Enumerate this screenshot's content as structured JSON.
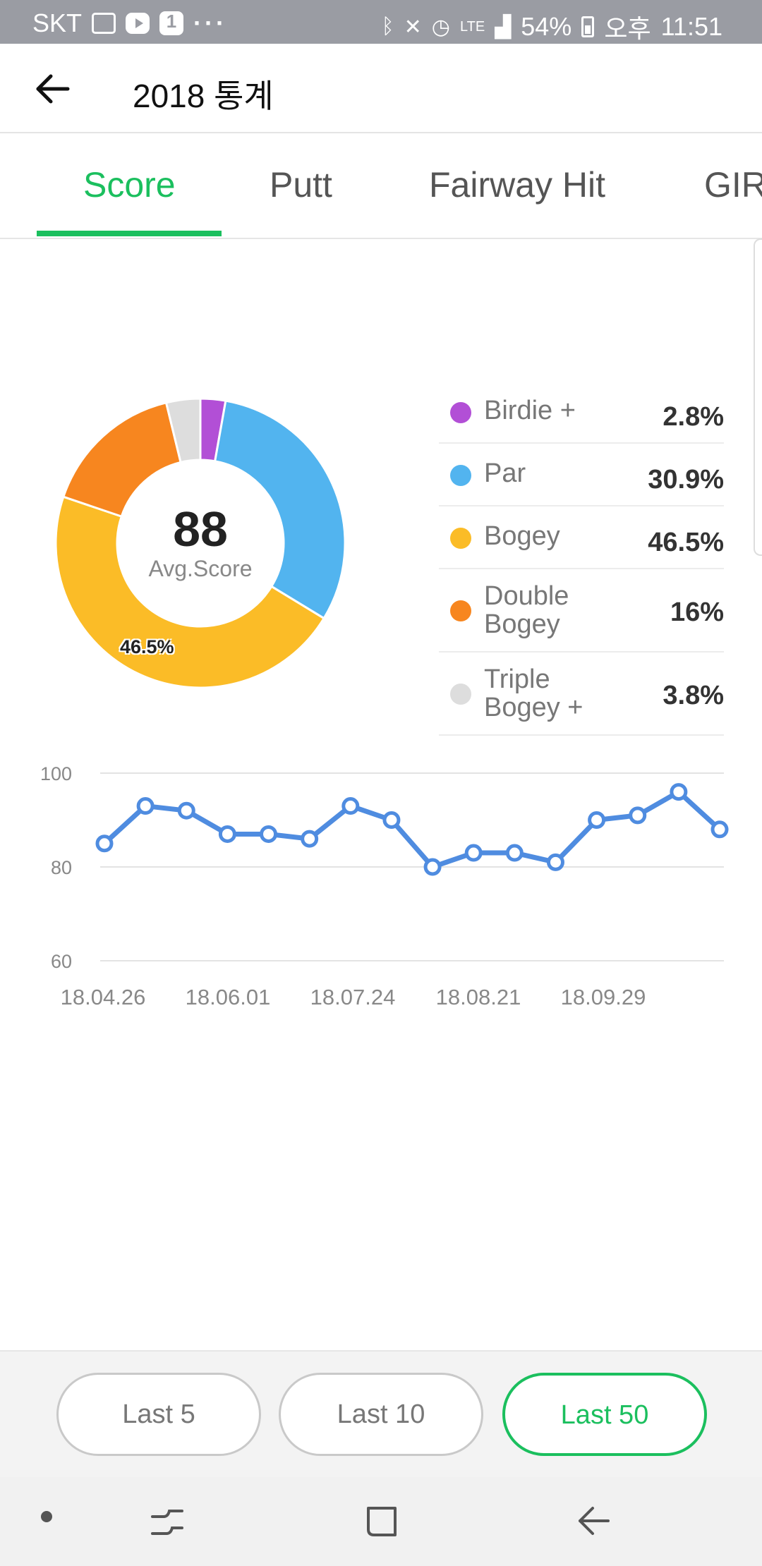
{
  "status_bar": {
    "carrier": "SKT",
    "badge": "1",
    "dots": "···",
    "lte": "LTE",
    "battery": "54%",
    "ampm": "오후",
    "time": "11:51"
  },
  "app_bar": {
    "title": "2018 통계"
  },
  "tabs": [
    {
      "label": "Score",
      "active": true
    },
    {
      "label": "Putt",
      "active": false
    },
    {
      "label": "Fairway Hit",
      "active": false
    },
    {
      "label": "GIR",
      "active": false
    }
  ],
  "summary": {
    "avg_value": "88",
    "avg_label": "Avg.Score",
    "slice_label": "46.5%"
  },
  "legend": [
    {
      "name": "Birdie +",
      "pct": "2.8%",
      "value": 2.8,
      "color": "#b24fd6"
    },
    {
      "name": "Par",
      "pct": "30.9%",
      "value": 30.9,
      "color": "#52b4ef"
    },
    {
      "name": "Bogey",
      "pct": "46.5%",
      "value": 46.5,
      "color": "#fbbc27"
    },
    {
      "name": "Double\nBogey",
      "pct": "16%",
      "value": 16,
      "color": "#f7861f"
    },
    {
      "name": "Triple\nBogey +",
      "pct": "3.8%",
      "value": 3.8,
      "color": "#dddddd"
    }
  ],
  "chart_data": [
    {
      "type": "pie",
      "labels": [
        "Birdie +",
        "Par",
        "Bogey",
        "Double Bogey",
        "Triple Bogey +"
      ],
      "values": [
        2.8,
        30.9,
        46.5,
        16,
        3.8
      ],
      "colors": [
        "#b24fd6",
        "#52b4ef",
        "#fbbc27",
        "#f7861f",
        "#dddddd"
      ],
      "center_value": "88",
      "center_label": "Avg.Score",
      "legend_position": "right"
    },
    {
      "type": "line",
      "values": [
        85,
        93,
        92,
        87,
        87,
        86,
        93,
        90,
        80,
        83,
        83,
        81,
        90,
        91,
        96,
        88
      ],
      "x_tick_labels": [
        "18.04.26",
        "18.06.01",
        "18.07.24",
        "18.08.21",
        "18.09.29"
      ],
      "y_ticks": [
        "100",
        "80",
        "60"
      ],
      "ylim": [
        60,
        100
      ],
      "grid": true,
      "line_color": "#4f8ce0"
    }
  ],
  "period_buttons": [
    {
      "label": "Last 5",
      "active": false
    },
    {
      "label": "Last 10",
      "active": false
    },
    {
      "label": "Last 50",
      "active": true
    }
  ],
  "colors": {
    "accent": "#1bbf5e",
    "status_bar": "#9a9ca3"
  }
}
